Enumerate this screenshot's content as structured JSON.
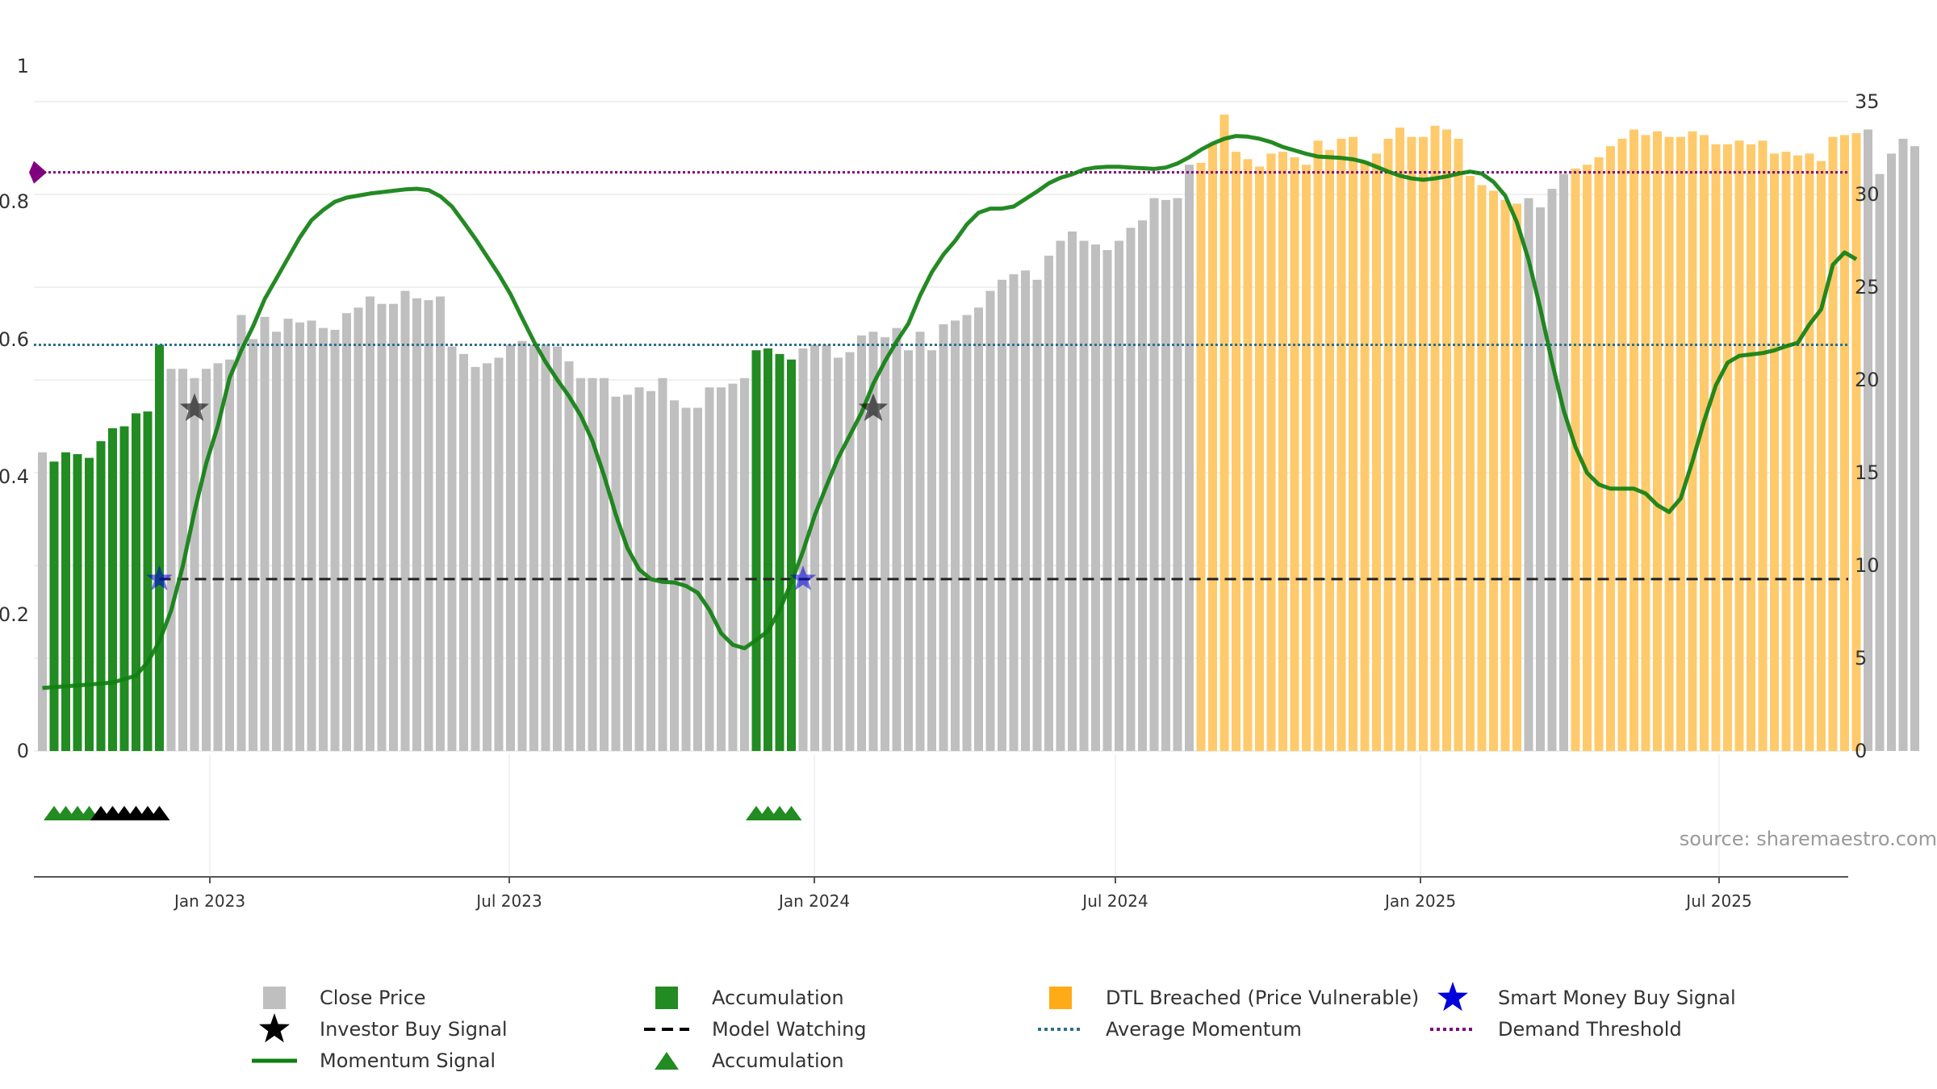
{
  "chart_data": {
    "type": "bar",
    "title": "",
    "source": "source: sharemaestro.com",
    "colors": {
      "close": "#bfbfbf",
      "accumulation": "#228b22",
      "dtl": "#ffca6b",
      "momentum": "#118011",
      "average": "#2e6f8e",
      "demand": "#800080",
      "watching": "#222222",
      "smart_money": "#0000dd",
      "investor": "#111111"
    },
    "axes": {
      "left": {
        "range": [
          0,
          1
        ],
        "ticks": [
          "0",
          "0.2",
          "0.4",
          "0.6",
          "0.8",
          "1"
        ]
      },
      "right": {
        "range": [
          0,
          35
        ],
        "ticks": [
          "0",
          "5",
          "10",
          "15",
          "20",
          "25",
          "30",
          "35"
        ]
      },
      "x_ticks": [
        "Jan 2023",
        "Jul 2023",
        "Jan 2024",
        "Jul 2024",
        "Jan 2025",
        "Jul 2025"
      ]
    },
    "bars": {
      "close_price": [
        16.1,
        15.6,
        16.1,
        16.0,
        15.8,
        16.7,
        17.4,
        17.5,
        18.2,
        18.3,
        21.9,
        20.6,
        20.6,
        20.1,
        20.6,
        20.9,
        21.1,
        23.5,
        22.2,
        23.4,
        22.6,
        23.3,
        23.1,
        23.2,
        22.8,
        22.7,
        23.6,
        23.9,
        24.5,
        24.1,
        24.1,
        24.8,
        24.4,
        24.3,
        24.5,
        21.8,
        21.4,
        20.7,
        20.9,
        21.2,
        21.9,
        22.1,
        21.9,
        21.9,
        21.8,
        21.0,
        20.1,
        20.1,
        20.1,
        19.1,
        19.2,
        19.6,
        19.4,
        20.1,
        18.9,
        18.5,
        18.5,
        19.6,
        19.6,
        19.8,
        20.1,
        21.6,
        21.7,
        21.4,
        21.1,
        21.7,
        21.9,
        21.9,
        21.2,
        21.5,
        22.4,
        22.6,
        22.3,
        22.8,
        21.6,
        22.6,
        21.6,
        23.0,
        23.2,
        23.5,
        23.9,
        24.8,
        25.4,
        25.7,
        25.9,
        25.4,
        26.7,
        27.5,
        28.0,
        27.5,
        27.3,
        27.0,
        27.5,
        28.2,
        28.6,
        29.8,
        29.7,
        29.8,
        31.6,
        31.7,
        32.7,
        34.3,
        32.3,
        31.9,
        31.5,
        32.2,
        32.3,
        32.0,
        31.6,
        32.9,
        32.4,
        33.0,
        33.1,
        31.8,
        32.2,
        33.0,
        33.6,
        33.1,
        33.1,
        33.7,
        33.5,
        33.0,
        31.0,
        30.5,
        30.2,
        29.7,
        29.5,
        29.8,
        29.3,
        30.3,
        31.1,
        31.4,
        31.6,
        32.0,
        32.6,
        33.0,
        33.5,
        33.2,
        33.4,
        33.1,
        33.1,
        33.4,
        33.2,
        32.7,
        32.7,
        32.9,
        32.7,
        32.9,
        32.2,
        32.3,
        32.1,
        32.2,
        31.8,
        33.1,
        33.2,
        33.3,
        33.5,
        31.1,
        32.2,
        33.0,
        32.6
      ],
      "accumulation_indexes": [
        1,
        2,
        3,
        4,
        5,
        6,
        7,
        8,
        9,
        10,
        61,
        62,
        63,
        64
      ],
      "dtl_breached_ranges": [
        [
          99,
          126
        ],
        [
          131,
          155
        ]
      ]
    },
    "series": [
      {
        "name": "Momentum Signal",
        "axis": "left",
        "points": [
          [
            0,
            0.092
          ],
          [
            4,
            0.097
          ],
          [
            6,
            0.1
          ],
          [
            8,
            0.11
          ],
          [
            9,
            0.13
          ],
          [
            10,
            0.16
          ],
          [
            11,
            0.205
          ],
          [
            12,
            0.27
          ],
          [
            13,
            0.35
          ],
          [
            14,
            0.42
          ],
          [
            15,
            0.475
          ],
          [
            16,
            0.545
          ],
          [
            17,
            0.585
          ],
          [
            18,
            0.62
          ],
          [
            19,
            0.66
          ],
          [
            20,
            0.69
          ],
          [
            21,
            0.72
          ],
          [
            22,
            0.75
          ],
          [
            23,
            0.775
          ],
          [
            24,
            0.79
          ],
          [
            25,
            0.802
          ],
          [
            26,
            0.808
          ],
          [
            27,
            0.811
          ],
          [
            28,
            0.814
          ],
          [
            29,
            0.816
          ],
          [
            30,
            0.818
          ],
          [
            31,
            0.82
          ],
          [
            32,
            0.821
          ],
          [
            33,
            0.819
          ],
          [
            34,
            0.81
          ],
          [
            35,
            0.795
          ],
          [
            36,
            0.772
          ],
          [
            37,
            0.748
          ],
          [
            38,
            0.722
          ],
          [
            39,
            0.696
          ],
          [
            40,
            0.667
          ],
          [
            41,
            0.632
          ],
          [
            42,
            0.598
          ],
          [
            43,
            0.568
          ],
          [
            44,
            0.542
          ],
          [
            45,
            0.518
          ],
          [
            46,
            0.49
          ],
          [
            47,
            0.453
          ],
          [
            48,
            0.402
          ],
          [
            49,
            0.345
          ],
          [
            50,
            0.296
          ],
          [
            51,
            0.265
          ],
          [
            52,
            0.251
          ],
          [
            53,
            0.247
          ],
          [
            54,
            0.246
          ],
          [
            55,
            0.241
          ],
          [
            56,
            0.231
          ],
          [
            57,
            0.206
          ],
          [
            58,
            0.172
          ],
          [
            59,
            0.155
          ],
          [
            60,
            0.15
          ],
          [
            61,
            0.162
          ],
          [
            62,
            0.175
          ],
          [
            63,
            0.206
          ],
          [
            64,
            0.246
          ],
          [
            65,
            0.292
          ],
          [
            66,
            0.344
          ],
          [
            67,
            0.387
          ],
          [
            68,
            0.428
          ],
          [
            69,
            0.461
          ],
          [
            70,
            0.494
          ],
          [
            71,
            0.536
          ],
          [
            72,
            0.569
          ],
          [
            73,
            0.598
          ],
          [
            74,
            0.624
          ],
          [
            75,
            0.665
          ],
          [
            76,
            0.699
          ],
          [
            77,
            0.725
          ],
          [
            78,
            0.745
          ],
          [
            79,
            0.769
          ],
          [
            80,
            0.786
          ],
          [
            81,
            0.792
          ],
          [
            82,
            0.792
          ],
          [
            83,
            0.795
          ],
          [
            84,
            0.806
          ],
          [
            85,
            0.817
          ],
          [
            86,
            0.829
          ],
          [
            87,
            0.837
          ],
          [
            88,
            0.842
          ],
          [
            89,
            0.849
          ],
          [
            90,
            0.852
          ],
          [
            91,
            0.853
          ],
          [
            92,
            0.853
          ],
          [
            93,
            0.852
          ],
          [
            94,
            0.851
          ],
          [
            95,
            0.85
          ],
          [
            96,
            0.852
          ],
          [
            97,
            0.858
          ],
          [
            98,
            0.867
          ],
          [
            99,
            0.878
          ],
          [
            100,
            0.887
          ],
          [
            101,
            0.894
          ],
          [
            102,
            0.898
          ],
          [
            103,
            0.897
          ],
          [
            104,
            0.894
          ],
          [
            105,
            0.889
          ],
          [
            106,
            0.882
          ],
          [
            107,
            0.877
          ],
          [
            108,
            0.872
          ],
          [
            109,
            0.868
          ],
          [
            110,
            0.867
          ],
          [
            111,
            0.866
          ],
          [
            112,
            0.864
          ],
          [
            113,
            0.86
          ],
          [
            114,
            0.853
          ],
          [
            115,
            0.846
          ],
          [
            116,
            0.84
          ],
          [
            117,
            0.836
          ],
          [
            118,
            0.834
          ],
          [
            119,
            0.836
          ],
          [
            120,
            0.839
          ],
          [
            121,
            0.843
          ],
          [
            122,
            0.846
          ],
          [
            123,
            0.843
          ],
          [
            124,
            0.831
          ],
          [
            125,
            0.811
          ],
          [
            126,
            0.772
          ],
          [
            127,
            0.717
          ],
          [
            128,
            0.646
          ],
          [
            129,
            0.568
          ],
          [
            130,
            0.497
          ],
          [
            131,
            0.444
          ],
          [
            132,
            0.406
          ],
          [
            133,
            0.389
          ],
          [
            134,
            0.383
          ],
          [
            135,
            0.383
          ],
          [
            136,
            0.383
          ],
          [
            137,
            0.376
          ],
          [
            138,
            0.359
          ],
          [
            139,
            0.349
          ],
          [
            140,
            0.369
          ],
          [
            141,
            0.423
          ],
          [
            142,
            0.482
          ],
          [
            143,
            0.534
          ],
          [
            144,
            0.567
          ],
          [
            145,
            0.577
          ],
          [
            146,
            0.579
          ],
          [
            147,
            0.581
          ],
          [
            148,
            0.585
          ],
          [
            149,
            0.591
          ],
          [
            150,
            0.596
          ],
          [
            151,
            0.623
          ],
          [
            152,
            0.645
          ],
          [
            153,
            0.71
          ],
          [
            154,
            0.728
          ],
          [
            155,
            0.718
          ]
        ]
      },
      {
        "name": "Average Momentum",
        "axis": "left",
        "value": 0.593
      },
      {
        "name": "Demand Threshold",
        "axis": "left",
        "value": 0.845
      },
      {
        "name": "Model Watching",
        "axis": "left",
        "value": 0.251,
        "from_index": 10
      }
    ],
    "signals": {
      "smart_money_buy": [
        [
          10,
          0.251
        ],
        [
          65,
          0.251
        ]
      ],
      "investor_buy": [
        [
          13,
          0.5
        ],
        [
          71,
          0.5
        ]
      ],
      "accumulation_triangles_green": [
        1,
        2,
        3,
        4,
        61,
        62,
        63,
        64
      ],
      "investor_triangles_black": [
        5,
        6,
        7,
        8,
        9,
        10
      ]
    },
    "legend": [
      {
        "label": "Close Price",
        "marker": "square-gray"
      },
      {
        "label": "Investor Buy Signal",
        "marker": "star-black"
      },
      {
        "label": "Momentum Signal",
        "marker": "line-green"
      },
      {
        "label": "Accumulation",
        "marker": "square-green"
      },
      {
        "label": "Model Watching",
        "marker": "dash-black"
      },
      {
        "label": "Accumulation",
        "marker": "triangle-green"
      },
      {
        "label": "DTL Breached (Price Vulnerable)",
        "marker": "square-orange"
      },
      {
        "label": "Average Momentum",
        "marker": "dotted-teal"
      },
      {
        "label": "Smart Money Buy Signal",
        "marker": "star-blue"
      },
      {
        "label": "Demand Threshold",
        "marker": "dotted-purple"
      }
    ]
  }
}
